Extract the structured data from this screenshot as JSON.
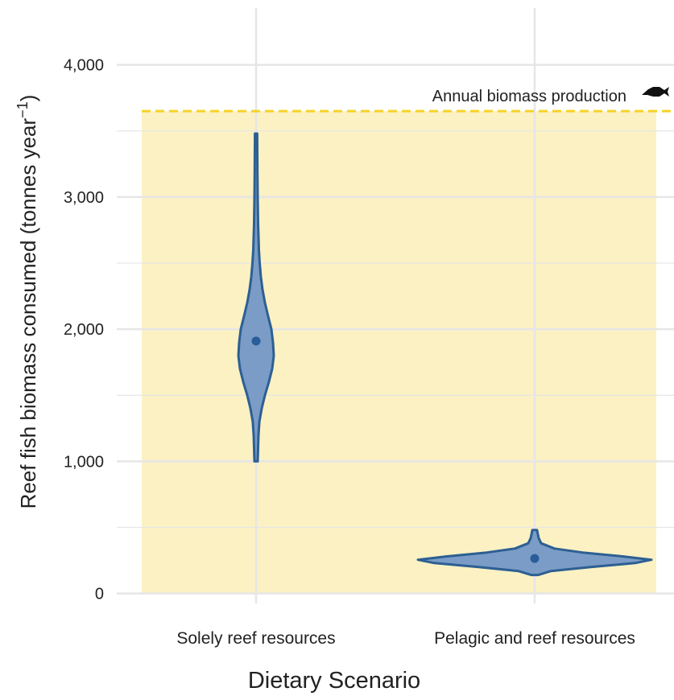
{
  "chart_data": {
    "type": "violin",
    "ylabel": {
      "text": "Reef fish biomass consumed (tonnes year",
      "superscript": "−1",
      "end": ")"
    },
    "xlabel": "Dietary Scenario",
    "categories": [
      "Solely reef resources",
      "Pelagic and reef resources"
    ],
    "ylim": [
      -45,
      4430
    ],
    "yticks": [
      0,
      {
        "value": 1000,
        "label": "1,000"
      },
      {
        "value": 2000,
        "label": "2,000"
      },
      {
        "value": 3000,
        "label": "3,000"
      },
      {
        "value": 4000,
        "label": "4,000"
      }
    ],
    "yminor": [
      500,
      1500,
      2500,
      3500
    ],
    "grid": true,
    "color": "#7a9cc6",
    "edge_color": "#2d5f93",
    "annual_production": 3650,
    "annotation": "Annual biomass production",
    "violins": [
      {
        "median": 1910,
        "profile": {
          "y": [
            1000,
            1100,
            1200,
            1300,
            1400,
            1500,
            1600,
            1700,
            1800,
            1900,
            2000,
            2100,
            2200,
            2300,
            2400,
            2500,
            2600,
            2800,
            3000,
            3200,
            3480
          ],
          "density": [
            0.014,
            0.017,
            0.021,
            0.028,
            0.048,
            0.076,
            0.11,
            0.138,
            0.152,
            0.145,
            0.131,
            0.103,
            0.076,
            0.055,
            0.041,
            0.031,
            0.024,
            0.017,
            0.014,
            0.012,
            0.01
          ]
        }
      },
      {
        "median": 265,
        "profile": {
          "y": [
            140,
            170,
            200,
            230,
            255,
            280,
            310,
            340,
            380,
            420,
            480
          ],
          "density": [
            0.03,
            0.14,
            0.48,
            0.86,
            1,
            0.76,
            0.41,
            0.17,
            0.055,
            0.034,
            0.02
          ]
        }
      }
    ]
  }
}
